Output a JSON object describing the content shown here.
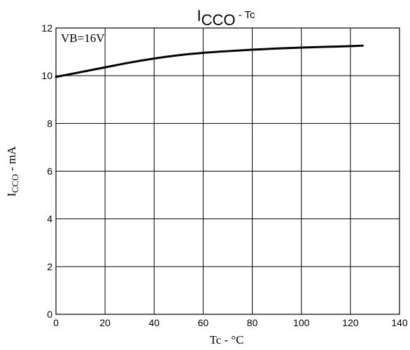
{
  "chart_data": {
    "type": "line",
    "title": {
      "main": "I",
      "subscript": "CCO",
      "suffix": " - Tc"
    },
    "xlabel": "Tc - °C",
    "ylabel": {
      "main": "I",
      "subscript": "CCO",
      "suffix": " - mA"
    },
    "annotation": "VB=16V",
    "xlim": [
      0,
      140
    ],
    "ylim": [
      0,
      12
    ],
    "x_ticks": [
      0,
      20,
      40,
      60,
      80,
      100,
      120,
      140
    ],
    "y_ticks": [
      0,
      2,
      4,
      6,
      8,
      10,
      12
    ],
    "grid": true,
    "series": [
      {
        "x": [
          0,
          10,
          20,
          30,
          40,
          50,
          60,
          70,
          80,
          90,
          100,
          110,
          120,
          125
        ],
        "y": [
          9.95,
          10.15,
          10.35,
          10.55,
          10.72,
          10.86,
          10.96,
          11.03,
          11.09,
          11.14,
          11.18,
          11.21,
          11.24,
          11.26
        ]
      }
    ]
  }
}
